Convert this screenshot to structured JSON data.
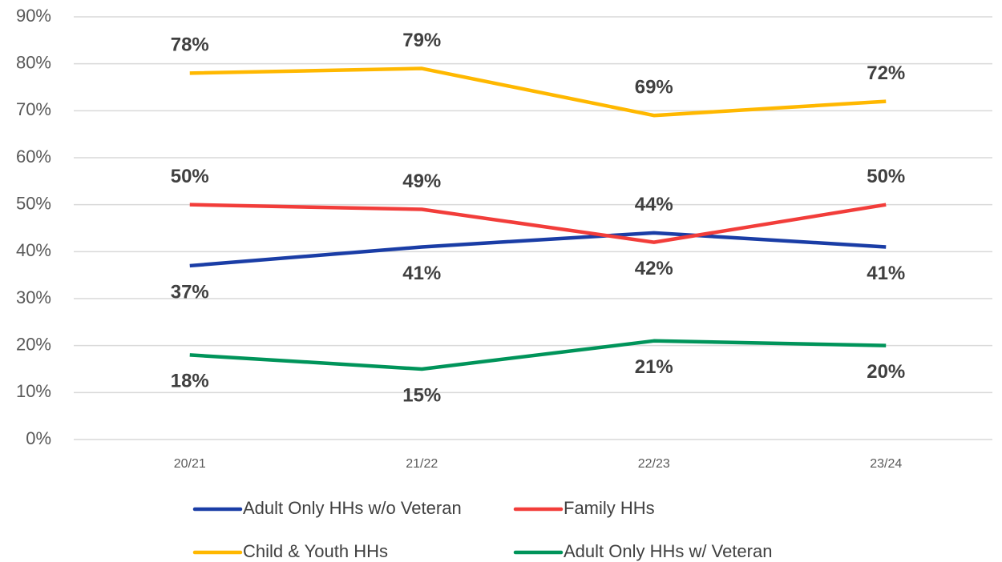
{
  "chart_data": {
    "type": "line",
    "categories": [
      "20/21",
      "21/22",
      "22/23",
      "23/24"
    ],
    "series": [
      {
        "name": "Adult Only HHs w/o Veteran",
        "color": "#1a3da6",
        "values": [
          37,
          41,
          44,
          41
        ],
        "value_labels": [
          "37%",
          "41%",
          "44%",
          "41%"
        ]
      },
      {
        "name": "Family HHs",
        "color": "#f23d3a",
        "values": [
          50,
          49,
          42,
          50
        ],
        "value_labels": [
          "50%",
          "49%",
          "42%",
          "50%"
        ]
      },
      {
        "name": "Child & Youth HHs",
        "color": "#ffb800",
        "values": [
          78,
          79,
          69,
          72
        ],
        "value_labels": [
          "78%",
          "79%",
          "69%",
          "72%"
        ]
      },
      {
        "name": "Adult Only HHs w/ Veteran",
        "color": "#00945a",
        "values": [
          18,
          15,
          21,
          20
        ],
        "value_labels": [
          "18%",
          "15%",
          "21%",
          "20%"
        ]
      }
    ],
    "ylim": [
      0,
      90
    ],
    "yticks": [
      {
        "value": 0,
        "label": "0%"
      },
      {
        "value": 10,
        "label": "10%"
      },
      {
        "value": 20,
        "label": "20%"
      },
      {
        "value": 30,
        "label": "30%"
      },
      {
        "value": 40,
        "label": "40%"
      },
      {
        "value": 50,
        "label": "50%"
      },
      {
        "value": 60,
        "label": "60%"
      },
      {
        "value": 70,
        "label": "70%"
      },
      {
        "value": 80,
        "label": "80%"
      },
      {
        "value": 90,
        "label": "90%"
      }
    ],
    "grid": true
  }
}
